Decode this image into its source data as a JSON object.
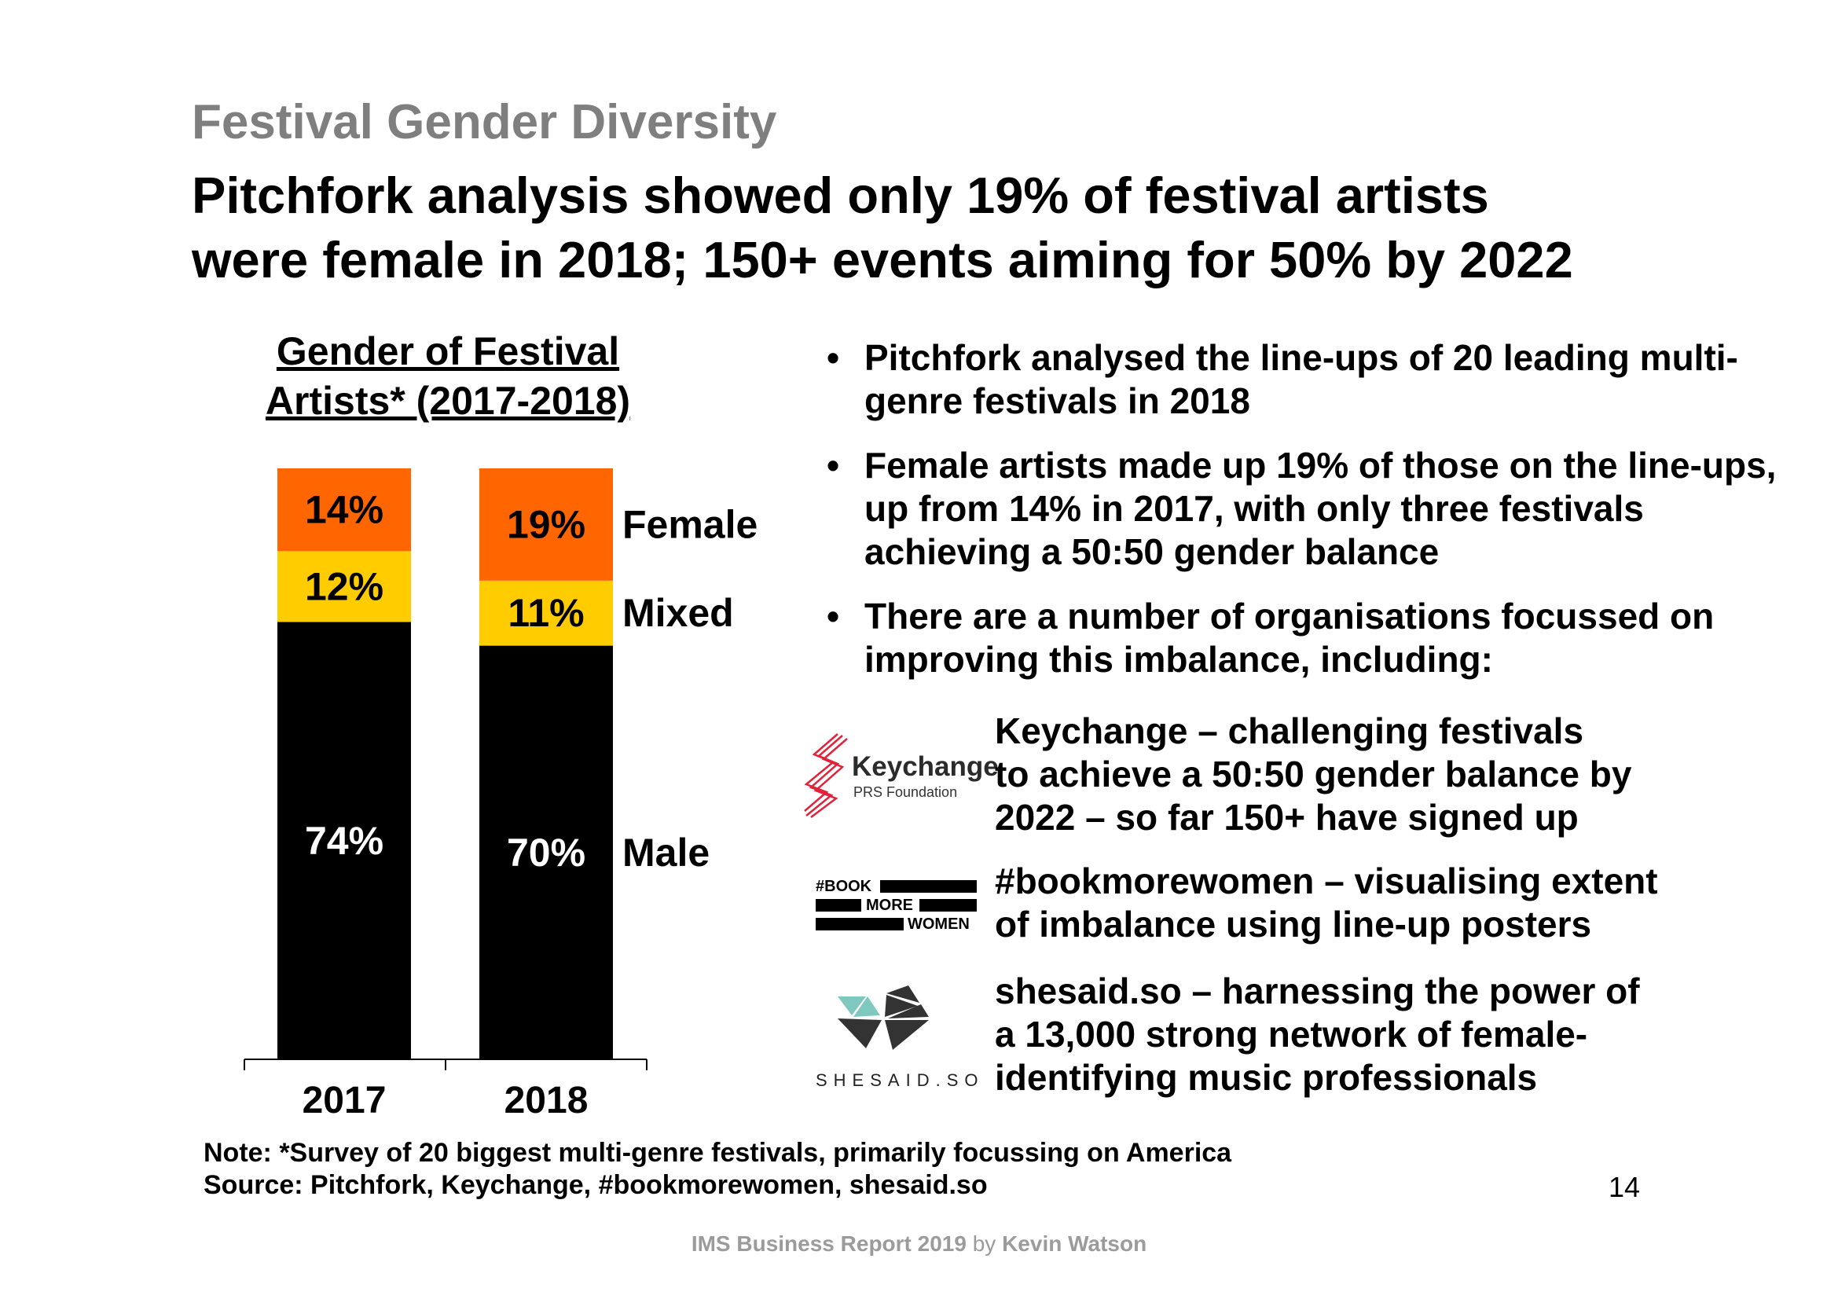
{
  "slide": {
    "kicker": "Festival Gender Diversity",
    "headline": {
      "line1": "Pitchfork analysis showed only 19% of festival artists",
      "line2": "were female in 2018; 150+ events aiming for 50% by 2022"
    },
    "page_number": "14"
  },
  "chart_title": {
    "line1": "Gender of Festival",
    "line2": "Artists* (2017-2018)"
  },
  "chart_data": {
    "type": "bar",
    "stacked": true,
    "title": "Gender of Festival Artists* (2017-2018)",
    "categories": [
      "2017",
      "2018"
    ],
    "series": [
      {
        "name": "Male",
        "values": [
          74,
          70
        ],
        "labels": [
          "74%",
          "70%"
        ],
        "color": "#000000",
        "label_color": "#ffffff"
      },
      {
        "name": "Mixed",
        "values": [
          12,
          11
        ],
        "labels": [
          "12%",
          "11%"
        ],
        "color": "#ffcc00",
        "label_color": "#000000"
      },
      {
        "name": "Female",
        "values": [
          14,
          19
        ],
        "labels": [
          "14%",
          "19%"
        ],
        "color": "#ff6600",
        "label_color": "#000000"
      }
    ],
    "ylim": [
      0,
      100
    ],
    "xlabel": "",
    "ylabel": "",
    "legend": "right of last bar"
  },
  "bullets": [
    "Pitchfork analysed the line-ups of 20 leading multi-genre festivals in 2018",
    "Female artists made up 19% of those on the line-ups, up from 14% in 2017, with only three festivals achieving a 50:50 gender balance",
    "There are a number of organisations focussed on improving this imbalance, including:"
  ],
  "organisations": [
    {
      "logo_icon": "keychange-logo",
      "logo_text": "Keychange",
      "logo_subtext": "PRS Foundation",
      "lines": [
        "Keychange – challenging festivals",
        "to achieve a 50:50 gender balance by",
        "2022 – so far 150+ have signed up"
      ]
    },
    {
      "logo_icon": "bookmorewomen-logo",
      "logo_text": [
        "#BOOK",
        "MORE",
        "WOMEN"
      ],
      "lines": [
        "#bookmorewomen – visualising extent",
        "of imbalance using line-up posters"
      ]
    },
    {
      "logo_icon": "shesaid-logo",
      "logo_text": "SHESAID.SO",
      "lines": [
        "shesaid.so – harnessing the power of",
        "a 13,000 strong network of female-",
        "identifying music professionals"
      ]
    }
  ],
  "note": {
    "line1": "Note: *Survey of 20 biggest multi-genre festivals, primarily focussing on America",
    "line2": "Source: Pitchfork, Keychange, #bookmorewomen, shesaid.so"
  },
  "footer": {
    "report": "IMS Business Report 2019",
    "by": "by",
    "author": "Kevin Watson"
  },
  "colors": {
    "female": "#ff6600",
    "mixed": "#ffcc00",
    "male": "#000000",
    "kicker": "#7f7f7f",
    "keychange_red": "#e2223b",
    "shesaid_teal": "#7ec8c0",
    "shesaid_dark": "#333333"
  }
}
